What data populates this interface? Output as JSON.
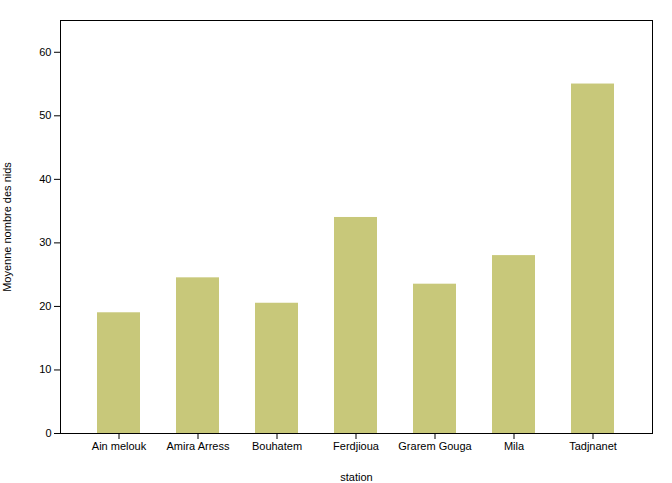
{
  "chart_data": {
    "type": "bar",
    "categories": [
      "Ain melouk",
      "Amira Arress",
      "Bouhatem",
      "Ferdjioua",
      "Grarem Gouga",
      "Mila",
      "Tadjnanet"
    ],
    "values": [
      19.0,
      24.5,
      20.5,
      34.0,
      23.5,
      28.0,
      55.0
    ],
    "color": "#c8c87a",
    "xlabel": "station",
    "ylabel": "Moyenne nombre des nids",
    "ylim": [
      0,
      65
    ],
    "yticks": [
      0,
      10,
      20,
      30,
      40,
      50,
      60
    ],
    "grid": false
  }
}
